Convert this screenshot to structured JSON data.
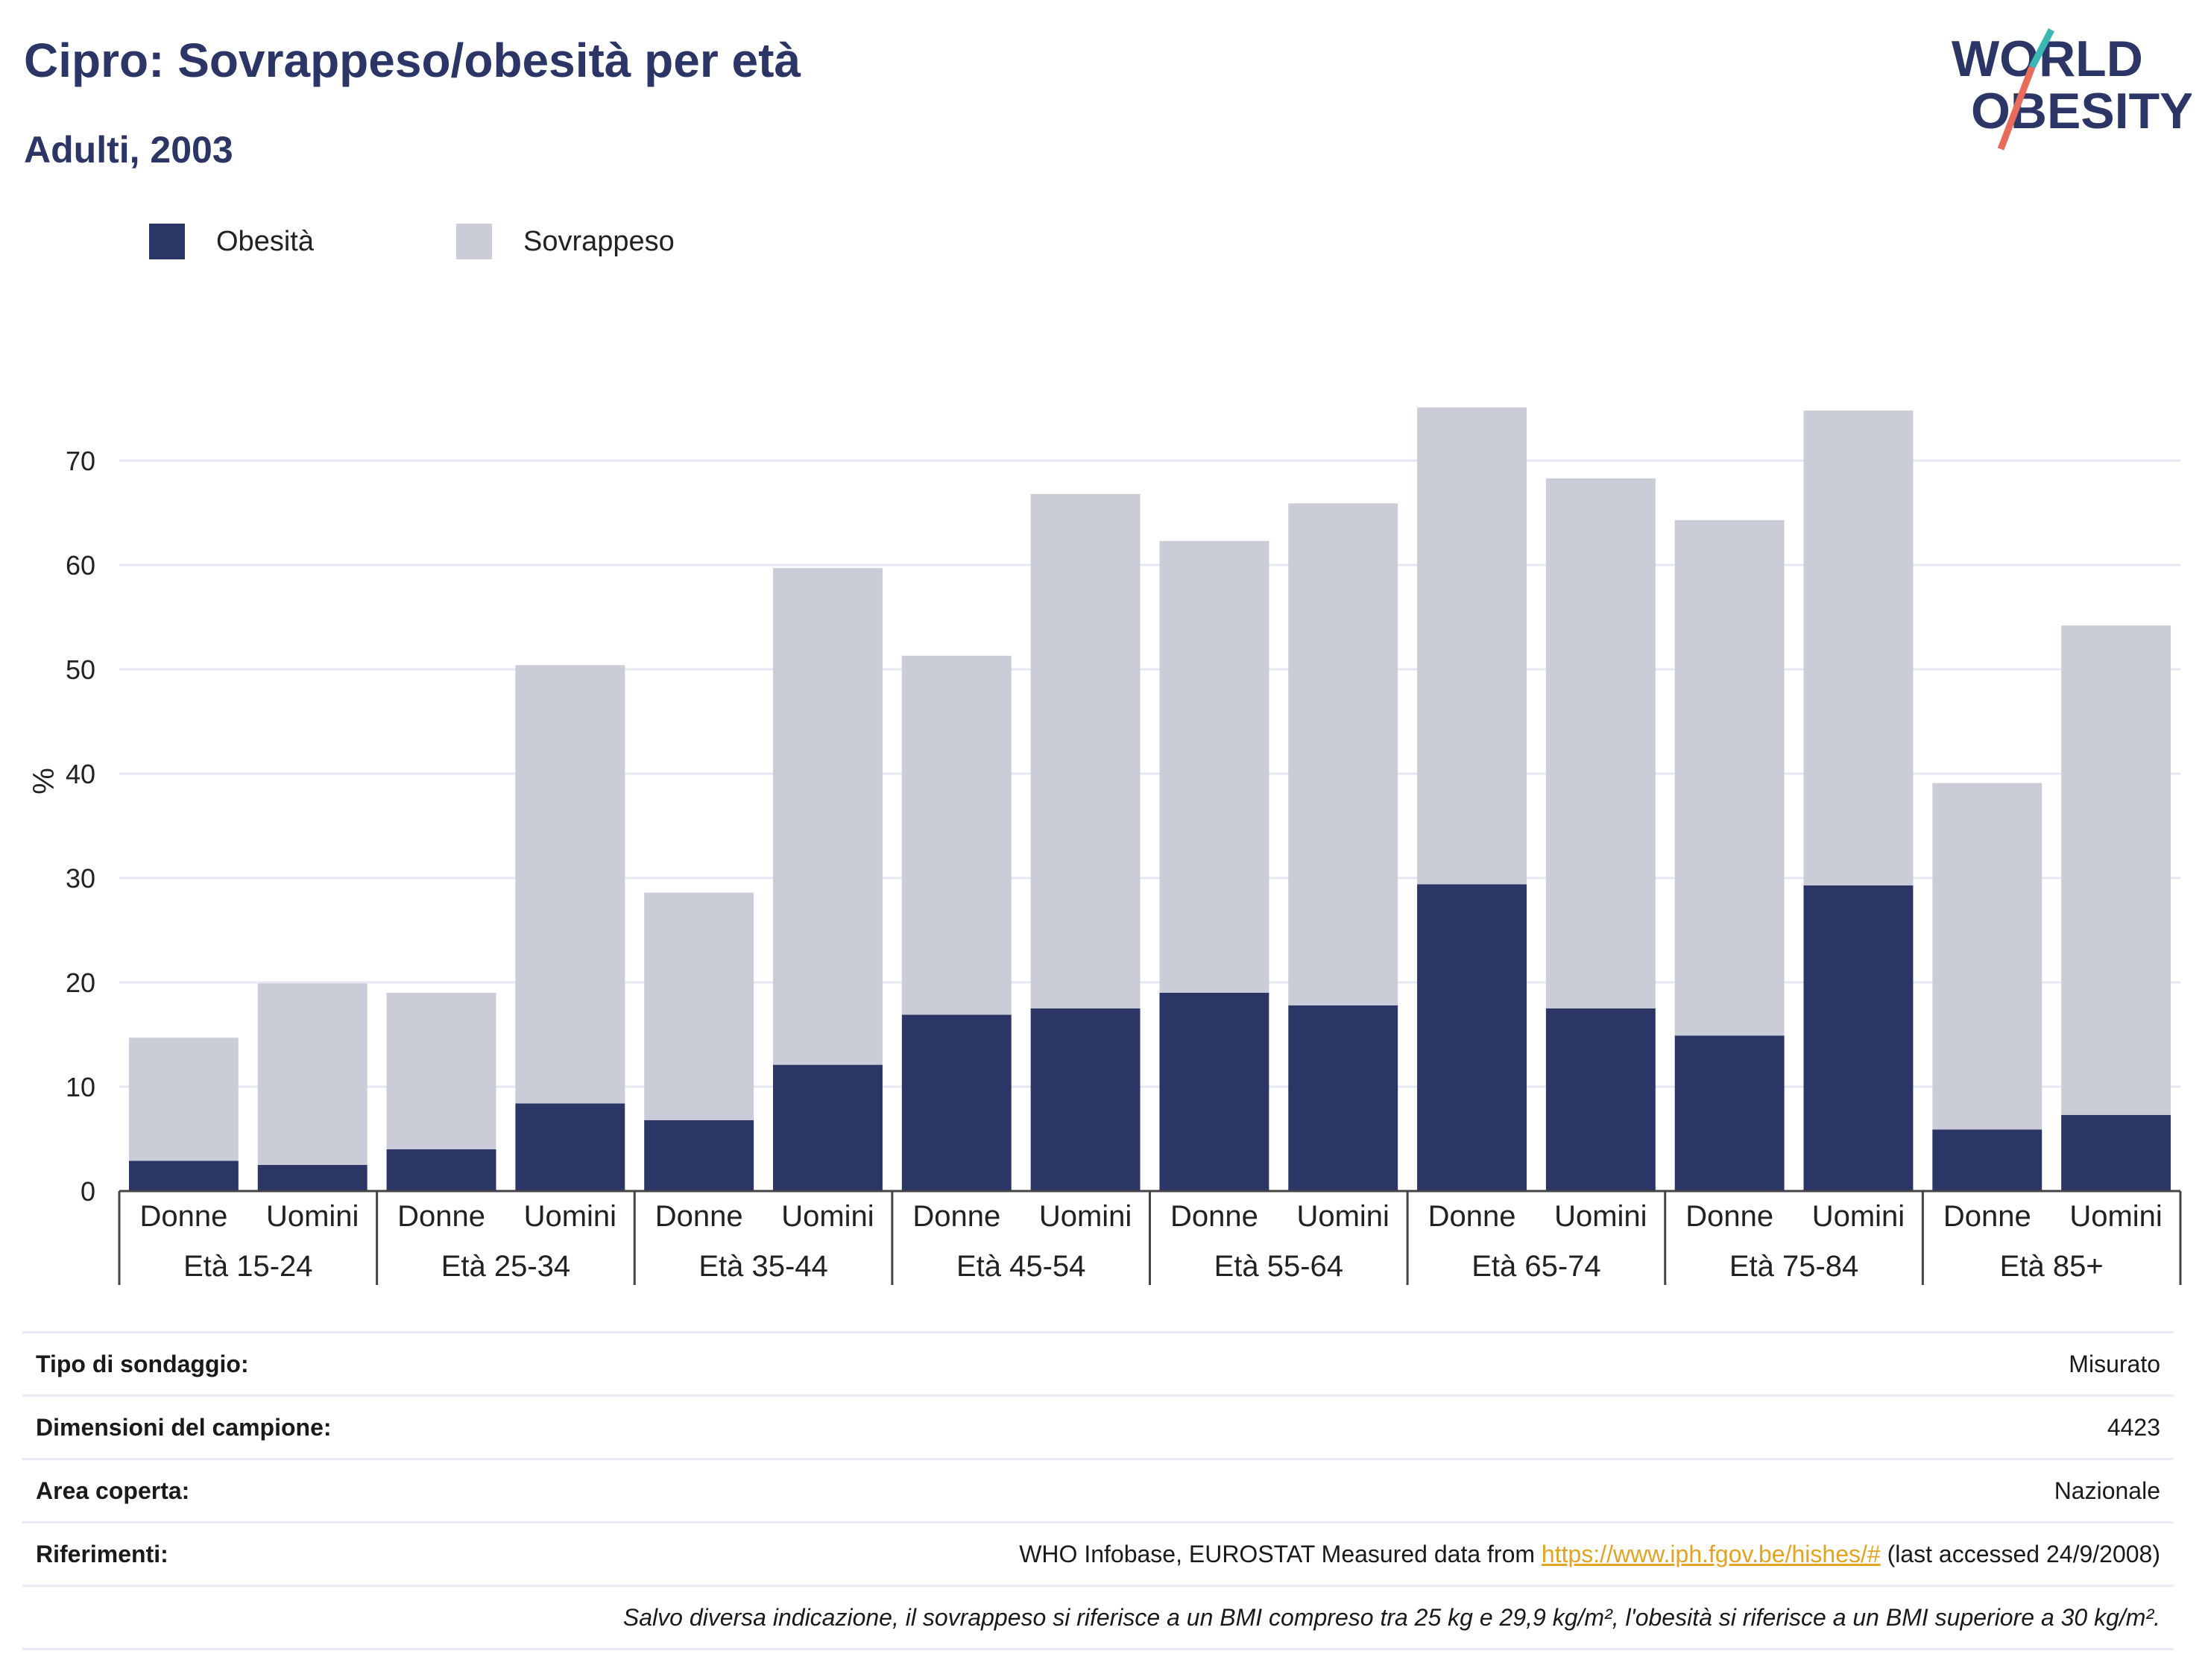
{
  "header": {
    "title": "Cipro: Sovrappeso/obesità per età",
    "subtitle": "Adulti, 2003"
  },
  "logo": {
    "line1": "WORLD",
    "line2": "OBESITY",
    "colors": {
      "text": "#2b3566",
      "slash_top": "#3bb8b4",
      "slash_bottom": "#e86b5b"
    }
  },
  "legend": {
    "items": [
      {
        "label": "Obesità",
        "color": "#2b3566"
      },
      {
        "label": "Sovrappeso",
        "color": "#caccd8"
      }
    ]
  },
  "chart_data": {
    "type": "bar",
    "stacked": true,
    "ylabel": "%",
    "ylim": [
      0,
      80
    ],
    "yticks": [
      0,
      10,
      20,
      30,
      40,
      50,
      60,
      70
    ],
    "grid": true,
    "legend_position": "top-left",
    "groups": [
      "Età 15-24",
      "Età 25-34",
      "Età 35-44",
      "Età 45-54",
      "Età 55-64",
      "Età 65-74",
      "Età 75-84",
      "Età 85+"
    ],
    "subcategories": [
      "Donne",
      "Uomini"
    ],
    "categories": [
      "Donne",
      "Uomini",
      "Donne",
      "Uomini",
      "Donne",
      "Uomini",
      "Donne",
      "Uomini",
      "Donne",
      "Uomini",
      "Donne",
      "Uomini",
      "Donne",
      "Uomini",
      "Donne",
      "Uomini"
    ],
    "series": [
      {
        "name": "Obesità",
        "color": "#2b3566",
        "values": [
          2.9,
          2.5,
          4.0,
          8.4,
          6.8,
          12.1,
          16.9,
          17.5,
          19.0,
          17.8,
          29.4,
          17.5,
          14.9,
          29.3,
          5.9,
          7.3
        ]
      },
      {
        "name": "Sovrappeso",
        "color": "#caccd8",
        "values": [
          11.8,
          17.4,
          15.0,
          42.0,
          21.8,
          47.6,
          34.4,
          49.3,
          43.3,
          48.1,
          45.7,
          50.8,
          49.4,
          45.5,
          33.2,
          46.9
        ]
      }
    ]
  },
  "info": {
    "survey_type": {
      "label": "Tipo di sondaggio:",
      "value": "Misurato"
    },
    "sample_size": {
      "label": "Dimensioni del campione:",
      "value": "4423"
    },
    "area": {
      "label": "Area coperta:",
      "value": "Nazionale"
    },
    "references": {
      "label": "Riferimenti:",
      "prefix": "WHO Infobase, EUROSTAT Measured data from ",
      "link": "https://www.iph.fgov.be/hishes/#",
      "suffix": " (last accessed 24/9/2008)"
    },
    "note": "Salvo diversa indicazione, il sovrappeso si riferisce a un BMI compreso tra 25 kg e 29,9 kg/m², l'obesità si riferisce a un BMI superiore a 30 kg/m²."
  }
}
